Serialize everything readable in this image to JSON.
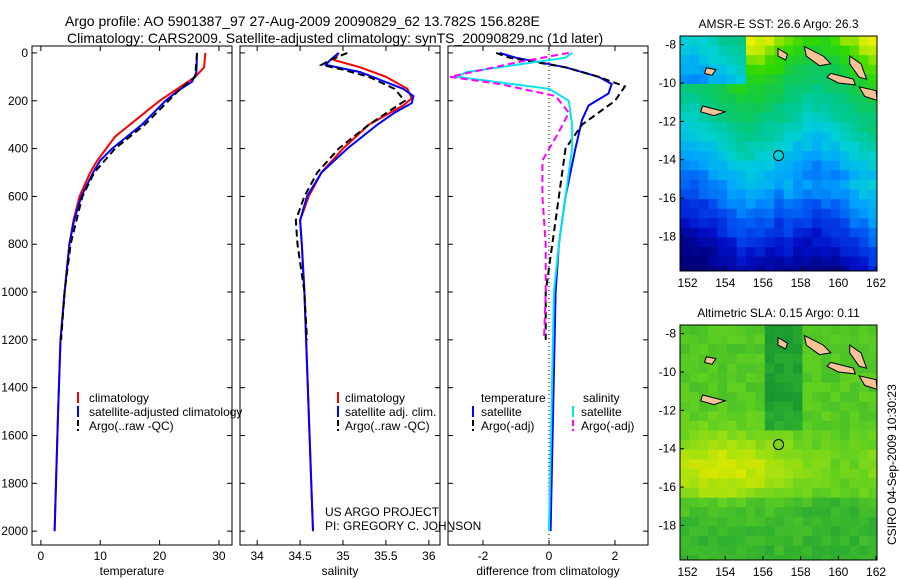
{
  "title_line1": "Argo profile: AO 5901387_97 27-Aug-2009 20090829_62 13.782S 156.828E",
  "title_line2": "Climatology: CARS2009. Satellite-adjusted climatology: synTS_20090829.nc (1d later)",
  "side_stamp": "CSIRO 04-Sep-2009 10:30:23",
  "credit_line1": "US ARGO PROJECT",
  "credit_line2": "PI: GREGORY C. JOHNSON",
  "colors": {
    "climatology": "#ff0000",
    "satellite": "#0000ff",
    "argo": "#000000",
    "sal_satellite": "#00e5ee",
    "sal_argo": "#ff00ff",
    "land": "#f5c396"
  },
  "chart_data": [
    {
      "type": "line",
      "xlabel": "temperature",
      "ylabel": "",
      "xlim": [
        -1.5,
        32.2
      ],
      "ylim": [
        2058,
        -29
      ],
      "xticks": [
        "0",
        "10",
        "20",
        "30"
      ],
      "xtick_values": [
        0,
        10,
        20,
        30
      ],
      "yticks": [
        "0",
        "200",
        "400",
        "600",
        "800",
        "1000",
        "1200",
        "1400",
        "1600",
        "1800",
        "2000"
      ],
      "ytick_values": [
        0,
        200,
        400,
        600,
        800,
        1000,
        1200,
        1400,
        1600,
        1800,
        2000
      ],
      "legend": [
        "climatology",
        "satellite-adjusted climatology",
        "Argo(..raw -QC)"
      ],
      "series": [
        {
          "name": "climatology",
          "color": "#ff0000",
          "dash": false,
          "depth": [
            0,
            60,
            100,
            150,
            200,
            250,
            300,
            350,
            400,
            450,
            500,
            600,
            700,
            800,
            1000,
            1200,
            1500,
            2000
          ],
          "values": [
            27.7,
            27.5,
            26,
            23,
            20,
            17.5,
            15,
            12.5,
            11,
            9.5,
            8.3,
            6.5,
            5.5,
            4.8,
            4,
            3.3,
            2.9,
            2.3
          ]
        },
        {
          "name": "satellite-adjusted climatology",
          "color": "#0000ff",
          "dash": false,
          "depth": [
            0,
            80,
            120,
            160,
            200,
            250,
            300,
            350,
            400,
            450,
            500,
            600,
            700,
            800,
            1000,
            1200,
            1500,
            2000
          ],
          "values": [
            26.3,
            26.2,
            25.5,
            23,
            21,
            19,
            17,
            14.5,
            12,
            10,
            8.8,
            6.8,
            5.6,
            4.8,
            4,
            3.3,
            2.9,
            2.3
          ]
        },
        {
          "name": "Argo(..raw -QC)",
          "color": "#000000",
          "dash": true,
          "depth": [
            0,
            100,
            150,
            200,
            300,
            400,
            500,
            600,
            800,
            1000,
            1200
          ],
          "values": [
            26.3,
            26,
            23.5,
            21.5,
            17.5,
            12.5,
            9,
            7,
            5,
            4,
            3.4
          ]
        }
      ]
    },
    {
      "type": "line",
      "xlabel": "salinity",
      "xlim": [
        33.8,
        36.13
      ],
      "ylim": [
        2058,
        -29
      ],
      "xticks": [
        "34",
        "34.5",
        "35",
        "35.5",
        "36"
      ],
      "xtick_values": [
        34,
        34.5,
        35,
        35.5,
        36
      ],
      "legend": [
        "climatology",
        "satellite adj. clim.",
        "Argo(..raw -QC)"
      ],
      "series": [
        {
          "name": "climatology",
          "color": "#ff0000",
          "dash": false,
          "depth": [
            0,
            30,
            60,
            100,
            150,
            190,
            220,
            300,
            400,
            500,
            600,
            700,
            800,
            1000,
            1500,
            2000
          ],
          "values": [
            34.95,
            34.9,
            35.2,
            35.5,
            35.75,
            35.8,
            35.7,
            35.3,
            35.0,
            34.75,
            34.6,
            34.5,
            34.52,
            34.55,
            34.6,
            34.65
          ]
        },
        {
          "name": "satellite adj. clim.",
          "color": "#0000ff",
          "dash": false,
          "depth": [
            0,
            30,
            50,
            80,
            150,
            180,
            210,
            250,
            300,
            400,
            500,
            600,
            700,
            800,
            1000,
            1500,
            2000
          ],
          "values": [
            34.95,
            34.85,
            34.8,
            35.2,
            35.7,
            35.82,
            35.8,
            35.6,
            35.4,
            35.05,
            34.75,
            34.58,
            34.5,
            34.52,
            34.55,
            34.6,
            34.65
          ]
        },
        {
          "name": "Argo(..raw -QC)",
          "color": "#000000",
          "dash": true,
          "depth": [
            0,
            30,
            50,
            70,
            100,
            150,
            200,
            300,
            400,
            500,
            600,
            700,
            800,
            1000,
            1200
          ],
          "values": [
            35.05,
            34.85,
            34.75,
            35.0,
            35.3,
            35.6,
            35.72,
            35.3,
            34.95,
            34.7,
            34.55,
            34.45,
            34.47,
            34.55,
            34.58
          ]
        }
      ]
    },
    {
      "type": "line",
      "xlabel": "difference from climatology",
      "xlim": [
        -3.06,
        3.0
      ],
      "ylim": [
        2058,
        -29
      ],
      "xticks": [
        "-2",
        "0",
        "2"
      ],
      "xtick_values": [
        -2,
        0,
        2
      ],
      "legend_temperature_title": "temperature",
      "legend_salinity_title": "salinity",
      "legend": [
        "satellite",
        "Argo(-adj)",
        "satellite",
        "Argo(-adj)"
      ],
      "series": [
        {
          "name": "temperature satellite",
          "color": "#0000ff",
          "dash": false,
          "depth": [
            0,
            20,
            60,
            100,
            130,
            170,
            220,
            280,
            400,
            600,
            800,
            1000,
            2000
          ],
          "values": [
            -1.5,
            -1.0,
            0.5,
            1.5,
            1.9,
            1.8,
            1.2,
            1.0,
            0.8,
            0.5,
            0.3,
            0.2,
            0.05
          ]
        },
        {
          "name": "temperature Argo(-adj)",
          "color": "#000000",
          "dash": true,
          "depth": [
            0,
            20,
            60,
            100,
            140,
            200,
            240,
            300,
            400,
            600,
            800,
            1000,
            1200
          ],
          "values": [
            -1.6,
            -1.2,
            0.5,
            1.5,
            2.3,
            2.0,
            1.6,
            1.0,
            0.5,
            0.3,
            0.1,
            -0.1,
            -0.1
          ]
        },
        {
          "name": "salinity satellite",
          "color": "#00e5ee",
          "dash": false,
          "depth": [
            0,
            20,
            50,
            80,
            100,
            150,
            200,
            300,
            400,
            600,
            800,
            1000,
            2000
          ],
          "values": [
            0.7,
            0.5,
            -1.0,
            -2.5,
            -2.8,
            0,
            0.6,
            0.7,
            0.7,
            0.5,
            0.3,
            0.15,
            0
          ]
        },
        {
          "name": "salinity Argo(-adj)",
          "color": "#ff00ff",
          "dash": true,
          "depth": [
            0,
            40,
            100,
            130,
            180,
            250,
            330,
            450,
            600,
            800,
            1000,
            1200
          ],
          "values": [
            0.6,
            -1.0,
            -3.0,
            -1.5,
            0.2,
            0.6,
            0.3,
            -0.2,
            -0.2,
            -0.1,
            -0.1,
            -0.15
          ]
        }
      ]
    },
    {
      "type": "heatmap",
      "title": "AMSR-E SST: 26.6 Argo: 26.3",
      "xlim": [
        151.6,
        162.05
      ],
      "ylim": [
        -19.8,
        -7.55
      ],
      "xticks": [
        "152",
        "154",
        "156",
        "158",
        "160",
        "162"
      ],
      "xtick_values": [
        152,
        154,
        156,
        158,
        160,
        162
      ],
      "yticks": [
        "-8",
        "-10",
        "-12",
        "-14",
        "-16",
        "-18"
      ],
      "ytick_values": [
        -8,
        -10,
        -12,
        -14,
        -16,
        -18
      ],
      "marker": {
        "lon": 156.828,
        "lat": -13.782
      },
      "colorscale": [
        "#00007f",
        "#0010c8",
        "#0050f0",
        "#00a0ff",
        "#00d0d8",
        "#00c890",
        "#10c850",
        "#30d800",
        "#e8f000"
      ]
    },
    {
      "type": "heatmap",
      "title": "Altimetric SLA: 0.15 Argo: 0.11",
      "xlim": [
        151.6,
        162.05
      ],
      "ylim": [
        -19.8,
        -7.55
      ],
      "xticks": [
        "152",
        "154",
        "156",
        "158",
        "160",
        "162"
      ],
      "xtick_values": [
        152,
        154,
        156,
        158,
        160,
        162
      ],
      "yticks": [
        "-8",
        "-10",
        "-12",
        "-14",
        "-16",
        "-18"
      ],
      "ytick_values": [
        -8,
        -10,
        -12,
        -14,
        -16,
        -18
      ],
      "marker": {
        "lon": 156.828,
        "lat": -13.782
      },
      "colorscale": [
        "#109030",
        "#30b030",
        "#60d020",
        "#a0e010",
        "#e0e800",
        "#f8c800"
      ]
    }
  ]
}
